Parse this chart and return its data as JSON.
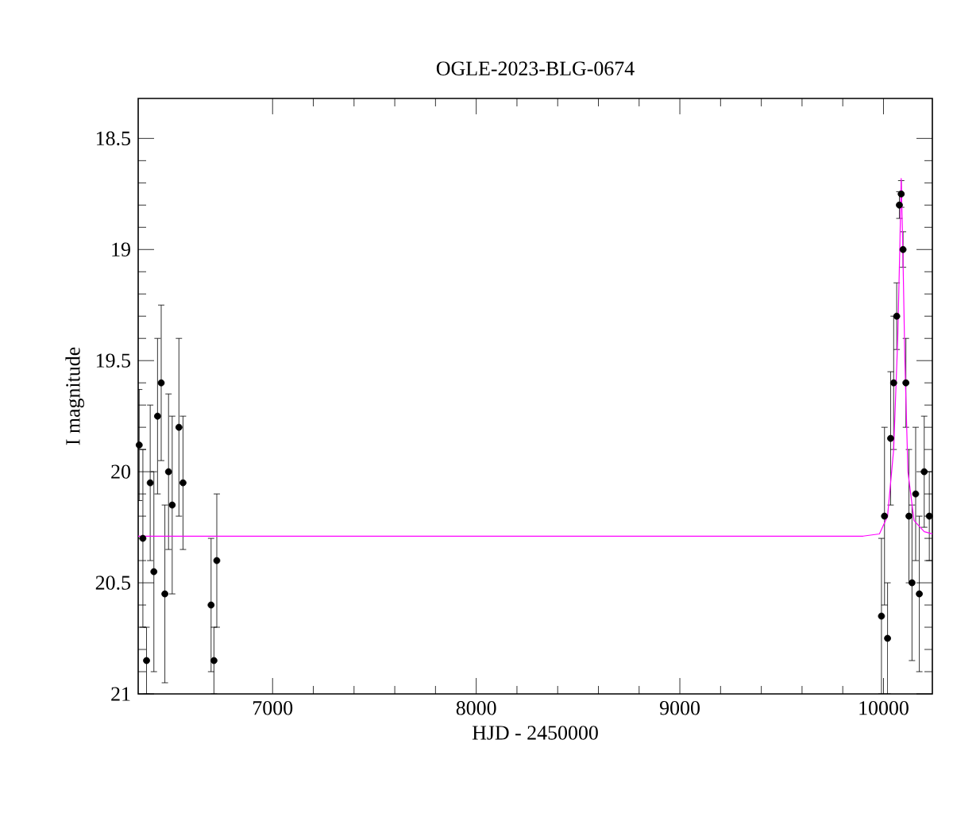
{
  "chart_data": {
    "type": "scatter",
    "title": "OGLE-2023-BLG-0674",
    "xlabel": "HJD - 2450000",
    "ylabel": "I magnitude",
    "xlim": [
      6340,
      10240
    ],
    "ylim": [
      21,
      18.32
    ],
    "xticks": [
      7000,
      8000,
      9000,
      10000
    ],
    "yticks": [
      18.5,
      19,
      19.5,
      20,
      20.5,
      21
    ],
    "marker": "circle",
    "series": [
      {
        "color": "#000000",
        "x": [
          6345,
          6363,
          6381,
          6399,
          6417,
          6435,
          6453,
          6471,
          6489,
          6507,
          6540,
          6560,
          6698,
          6712,
          6726,
          9990,
          10005,
          10020,
          10035,
          10050,
          10065,
          10078,
          10087,
          10096,
          10110,
          10125,
          10140,
          10158,
          10176,
          10200,
          10225
        ],
        "values": [
          19.88,
          20.3,
          20.85,
          20.05,
          20.45,
          19.75,
          19.6,
          20.55,
          20.0,
          20.15,
          19.8,
          20.05,
          20.6,
          20.85,
          20.4,
          20.65,
          20.2,
          20.75,
          19.85,
          19.6,
          19.3,
          18.8,
          18.75,
          19.0,
          19.6,
          20.2,
          20.5,
          20.1,
          20.55,
          20.0,
          20.2
        ],
        "errors": [
          0.25,
          0.4,
          0.15,
          0.35,
          0.45,
          0.35,
          0.35,
          0.4,
          0.35,
          0.4,
          0.4,
          0.3,
          0.3,
          0.15,
          0.3,
          0.35,
          0.4,
          0.25,
          0.3,
          0.3,
          0.15,
          0.06,
          0.06,
          0.08,
          0.2,
          0.3,
          0.35,
          0.3,
          0.35,
          0.25,
          0.2
        ]
      },
      {
        "type": "line",
        "color": "#ff00ff",
        "marker": "none",
        "x": [
          6340,
          9900,
          9980,
          10020,
          10050,
          10070,
          10080,
          10087,
          10095,
          10105,
          10120,
          10150,
          10200,
          10240
        ],
        "values": [
          20.29,
          20.29,
          20.28,
          20.2,
          19.9,
          19.4,
          19.0,
          18.68,
          19.0,
          19.5,
          20.0,
          20.22,
          20.27,
          20.28
        ]
      }
    ]
  }
}
